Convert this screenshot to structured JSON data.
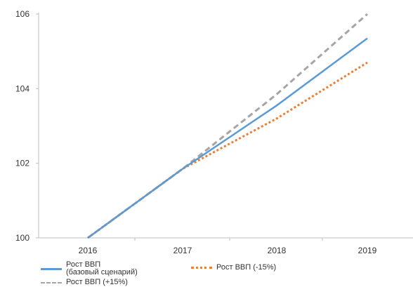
{
  "chart_data": {
    "type": "line",
    "title": "",
    "xlabel": "",
    "ylabel": "",
    "x": [
      "2016",
      "2017",
      "2018",
      "2019"
    ],
    "ylim": [
      100,
      106
    ],
    "yticks": [
      "100",
      "102",
      "104",
      "106"
    ],
    "grid": false,
    "legend_position": "bottom",
    "series": [
      {
        "name": "Рост ВВП\n(базовый сценарий)",
        "values": [
          100,
          101.85,
          103.55,
          105.35
        ],
        "color": "#5b9bd5",
        "style": "solid"
      },
      {
        "name": "Рост ВВП (-15%)",
        "values": [
          100,
          101.85,
          103.2,
          104.7
        ],
        "color": "#ed7d31",
        "style": "dotted"
      },
      {
        "name": "Рост ВВП (+15%)",
        "values": [
          100,
          101.85,
          103.85,
          106.0
        ],
        "color": "#a5a5a5",
        "style": "dashed"
      }
    ]
  }
}
